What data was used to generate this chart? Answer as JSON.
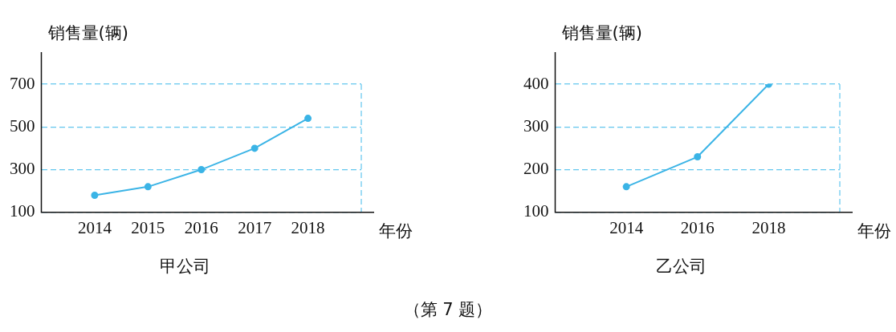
{
  "chart_data": [
    {
      "type": "line",
      "title": "甲公司",
      "xlabel": "年份",
      "ylabel": "销售量(辆)",
      "x": [
        2014,
        2015,
        2016,
        2017,
        2018
      ],
      "xlim": [
        2013,
        2019
      ],
      "xticks": [
        2014,
        2015,
        2016,
        2017,
        2018
      ],
      "ylim": [
        100,
        700
      ],
      "yticks": [
        100,
        300,
        500,
        700
      ],
      "grid": "y",
      "marker": "circle",
      "series": [
        {
          "color": "#3bb4e6",
          "values": [
            180,
            220,
            300,
            400,
            540
          ]
        }
      ],
      "annotations": [
        "（第 7 题）"
      ]
    },
    {
      "type": "line",
      "title": "乙公司",
      "xlabel": "年份",
      "ylabel": "销售量(辆)",
      "x": [
        2014,
        2016,
        2018
      ],
      "xlim": [
        2012,
        2020
      ],
      "xticks": [
        2014,
        2016,
        2018
      ],
      "ylim": [
        100,
        400
      ],
      "yticks": [
        100,
        200,
        300,
        400
      ],
      "grid": "y",
      "marker": "circle",
      "series": [
        {
          "color": "#3bb4e6",
          "values": [
            160,
            230,
            400
          ]
        }
      ]
    }
  ]
}
